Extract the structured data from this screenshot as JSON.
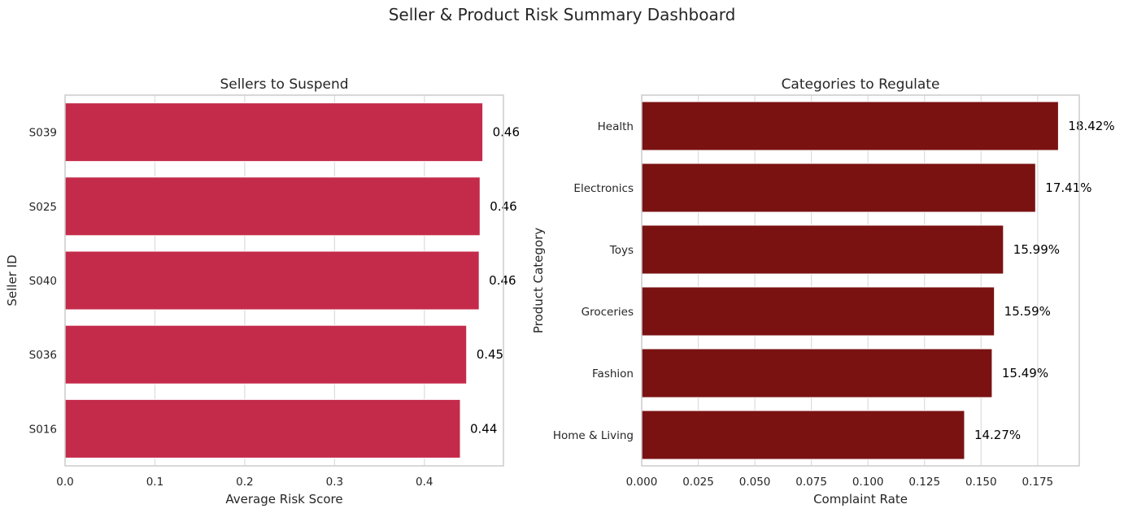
{
  "suptitle": "Seller & Product Risk Summary Dashboard",
  "chart_data": [
    {
      "type": "bar",
      "orientation": "horizontal",
      "title": "Sellers to Suspend",
      "xlabel": "Average Risk Score",
      "ylabel": "Seller ID",
      "categories": [
        "S039",
        "S025",
        "S040",
        "S036",
        "S016"
      ],
      "values": [
        0.465,
        0.462,
        0.461,
        0.447,
        0.44
      ],
      "data_labels": [
        "0.46",
        "0.46",
        "0.46",
        "0.45",
        "0.44"
      ],
      "xticks": [
        "0.0",
        "0.1",
        "0.2",
        "0.3",
        "0.4"
      ],
      "xlim": [
        0,
        0.488
      ],
      "grid": true,
      "color": "#c42b4b"
    },
    {
      "type": "bar",
      "orientation": "horizontal",
      "title": "Categories to Regulate",
      "xlabel": "Complaint Rate",
      "ylabel": "Product Category",
      "categories": [
        "Health",
        "Electronics",
        "Toys",
        "Groceries",
        "Fashion",
        "Home & Living"
      ],
      "values": [
        0.1842,
        0.1741,
        0.1599,
        0.1559,
        0.1549,
        0.1427
      ],
      "data_labels": [
        "18.42%",
        "17.41%",
        "15.99%",
        "15.59%",
        "15.49%",
        "14.27%"
      ],
      "xticks": [
        "0.000",
        "0.025",
        "0.050",
        "0.075",
        "0.100",
        "0.125",
        "0.150",
        "0.175"
      ],
      "xlim": [
        0,
        0.1934
      ],
      "grid": true,
      "color": "#7a1212"
    }
  ]
}
